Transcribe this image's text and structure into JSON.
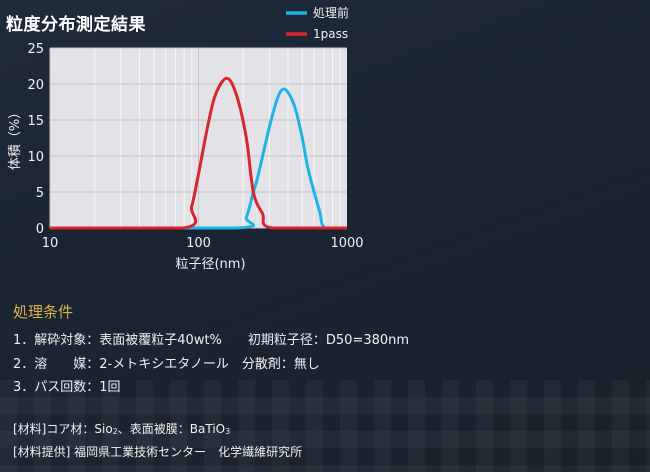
{
  "title": "粒度分布測定結果",
  "chart_data": {
    "type": "line",
    "title": "粒度分布測定結果",
    "xlabel": "粒子径(nm)",
    "ylabel": "体積（%）",
    "xscale": "log",
    "xlim": [
      10,
      1000
    ],
    "ylim": [
      0,
      25
    ],
    "xticks": [
      "10",
      "100",
      "1000"
    ],
    "yticks": [
      "0",
      "5",
      "10",
      "15",
      "20",
      "25"
    ],
    "grid": true,
    "legend_position": "top-right",
    "series": [
      {
        "name": "処理前",
        "color": "#1eb4e6",
        "x": [
          10,
          181,
          210,
          234,
          250,
          300,
          340,
          373,
          410,
          450,
          500,
          550,
          650,
          712,
          1000
        ],
        "y": [
          0,
          0,
          1.5,
          5,
          7,
          14,
          18,
          19.3,
          18.5,
          16.5,
          12.5,
          8,
          2.5,
          0,
          0
        ]
      },
      {
        "name": "1pass",
        "color": "#d8262e",
        "x": [
          10,
          79,
          90,
          100,
          115,
          130,
          155,
          180,
          210,
          234,
          270,
          312,
          1000
        ],
        "y": [
          0,
          0,
          3,
          7.5,
          14,
          18.5,
          20.8,
          18.5,
          12.5,
          5,
          2,
          0,
          0
        ]
      }
    ]
  },
  "conditions": {
    "title": "処理条件",
    "line1": "1．解砕対象：表面被覆粒子40wt%　　初期粒子径：D50=380nm",
    "line2": "2．溶　　媒：2-メトキシエタノール　分散剤：無し",
    "line3": "3．パス回数：1回"
  },
  "material": {
    "prefix": "[材料]コア材：Sio",
    "sub1": "2",
    "mid": "、表面被膜：BaTiO",
    "sub2": "3",
    "provider": "[材料提供] 福岡県工業技術センター　化学繊維研究所"
  }
}
